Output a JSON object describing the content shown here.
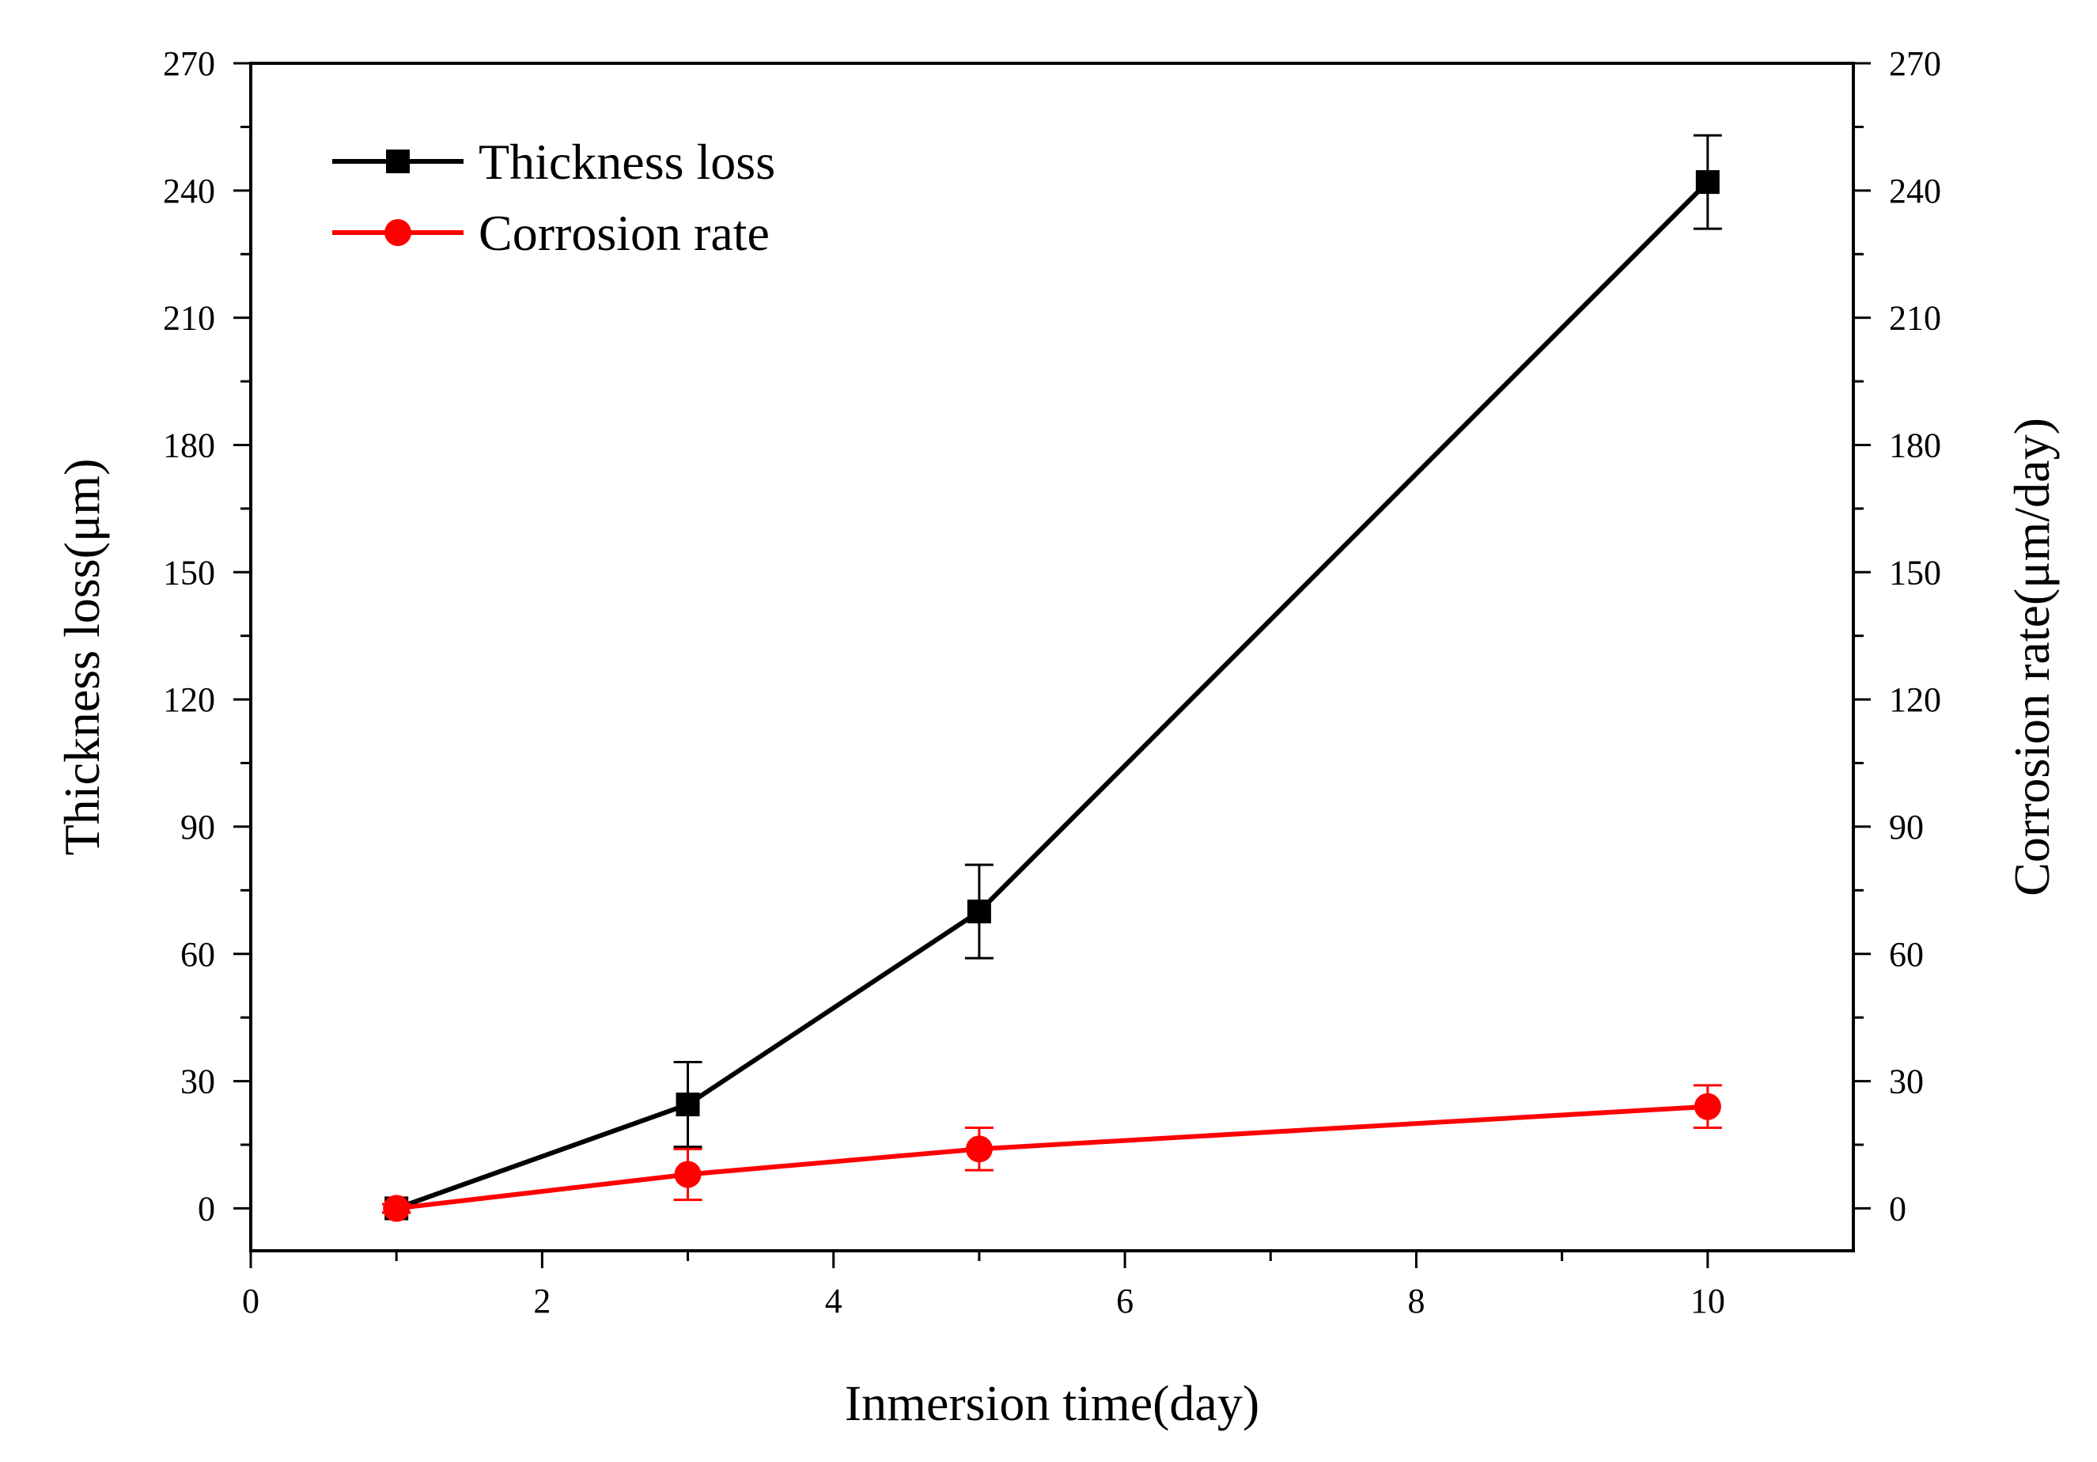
{
  "chart_data": {
    "type": "line",
    "title": "",
    "xlabel": "Inmersion time(day)",
    "ylabel_left": "Thickness loss(μm)",
    "ylabel_right": "Corrosion rate(μm/day)",
    "xlim": [
      0,
      11
    ],
    "ylim": [
      -10,
      270
    ],
    "x_ticks": [
      0,
      2,
      4,
      6,
      8,
      10
    ],
    "y_ticks": [
      0,
      30,
      60,
      90,
      120,
      150,
      180,
      210,
      240,
      270
    ],
    "legend_position": "top-left",
    "series": [
      {
        "name": "Thickness loss",
        "color": "#000000",
        "marker": "square",
        "axis": "left",
        "x": [
          1,
          3,
          5,
          10
        ],
        "values": [
          0,
          24.5,
          70,
          242
        ],
        "errors": [
          1,
          10,
          11,
          11
        ]
      },
      {
        "name": "Corrosion rate",
        "color": "#ff0000",
        "marker": "circle",
        "axis": "right",
        "x": [
          1,
          3,
          5,
          10
        ],
        "values": [
          0,
          8,
          14,
          24
        ],
        "errors": [
          1,
          6,
          5,
          5
        ]
      }
    ]
  }
}
